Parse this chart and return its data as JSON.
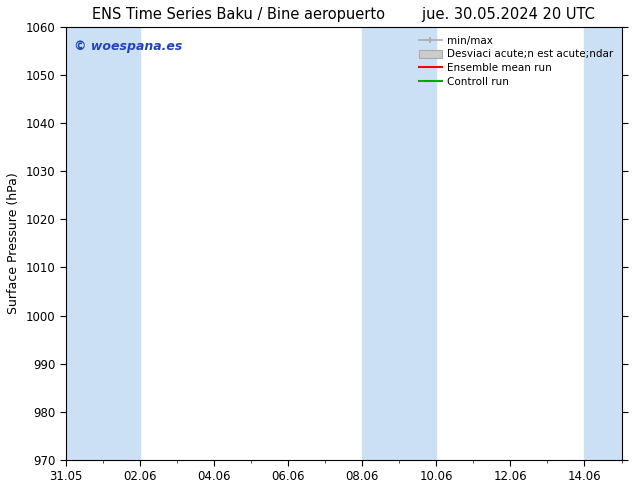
{
  "title_left": "ENS Time Series Baku / Bine aeropuerto",
  "title_right": "jue. 30.05.2024 20 UTC",
  "ylabel": "Surface Pressure (hPa)",
  "ylim": [
    970,
    1060
  ],
  "yticks": [
    970,
    980,
    990,
    1000,
    1010,
    1020,
    1030,
    1040,
    1050,
    1060
  ],
  "xlim": [
    0,
    15
  ],
  "xtick_labels": [
    "31.05",
    "02.06",
    "04.06",
    "06.06",
    "08.06",
    "10.06",
    "12.06",
    "14.06"
  ],
  "xtick_positions": [
    0,
    2,
    4,
    6,
    8,
    10,
    12,
    14
  ],
  "shaded_bands": [
    {
      "start": 0.0,
      "end": 2.0
    },
    {
      "start": 8.0,
      "end": 10.0
    },
    {
      "start": 14.0,
      "end": 15.0
    }
  ],
  "band_color": "#cce0f5",
  "watermark_text": "© woespana.es",
  "watermark_color": "#2244bb",
  "legend_labels": [
    "min/max",
    "Desviaci acute;n est acute;ndar",
    "Ensemble mean run",
    "Controll run"
  ],
  "legend_colors": [
    "#aaaaaa",
    "#cccccc",
    "#ff0000",
    "#00aa00"
  ],
  "background_color": "#ffffff",
  "plot_bg_color": "#ffffff",
  "title_fontsize": 10.5,
  "ylabel_fontsize": 9,
  "tick_fontsize": 8.5,
  "legend_fontsize": 7.5
}
